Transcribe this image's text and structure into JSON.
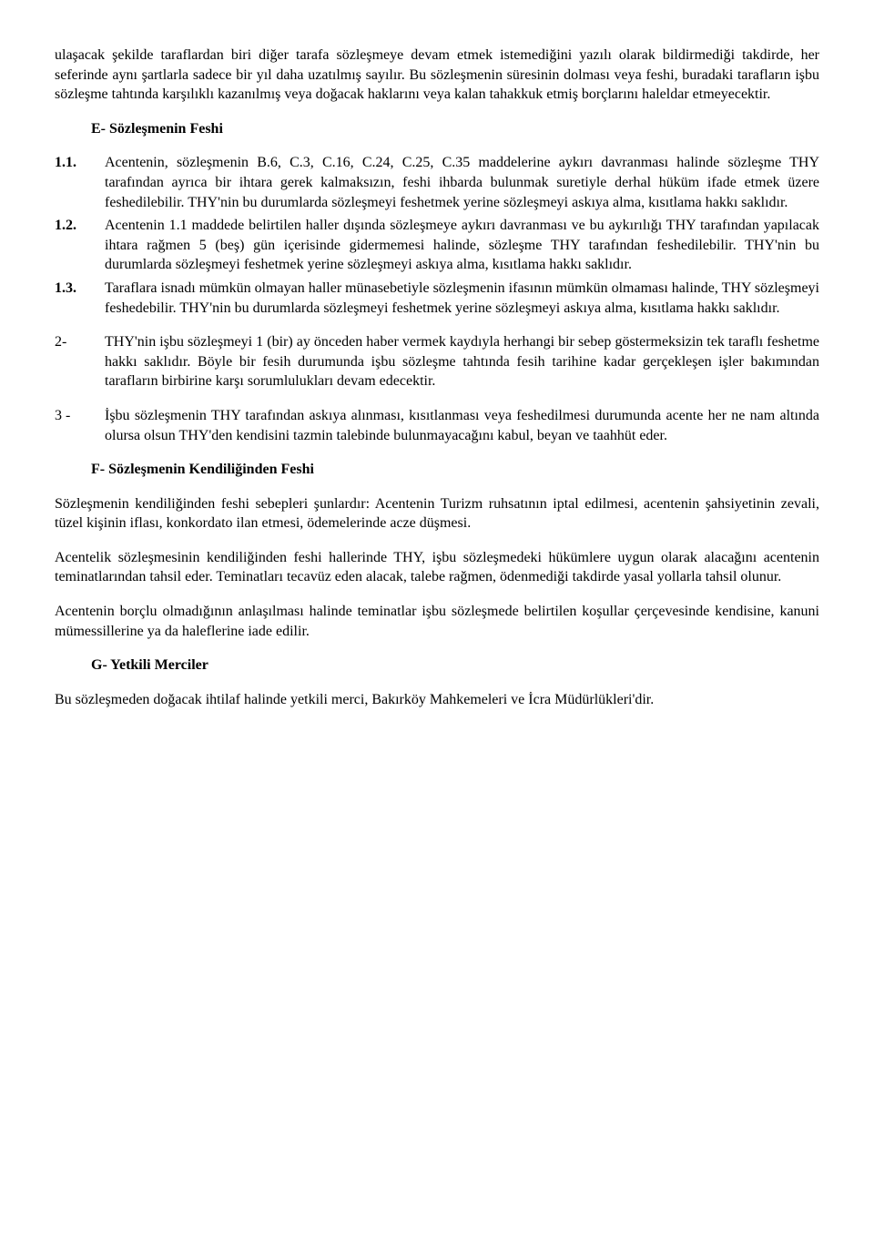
{
  "intro1": "ulaşacak şekilde taraflardan biri diğer tarafa sözleşmeye devam etmek istemediğini yazılı olarak bildirmediği takdirde, her seferinde aynı şartlarla sadece bir yıl daha uzatılmış sayılır. Bu sözleşmenin süresinin dolması veya feshi, buradaki tarafların işbu sözleşme tahtında karşılıklı kazanılmış veya doğacak haklarını veya kalan tahakkuk etmiş borçlarını haleldar etmeyecektir.",
  "sectionE": {
    "heading": "E- Sözleşmenin Feshi",
    "item1_1": {
      "label": "1.1.",
      "text": "Acentenin, sözleşmenin B.6, C.3, C.16, C.24, C.25, C.35 maddelerine aykırı davranması halinde sözleşme THY tarafından ayrıca bir ihtara gerek kalmaksızın, feshi ihbarda bulunmak suretiyle derhal hüküm ifade etmek üzere feshedilebilir. THY'nin bu durumlarda sözleşmeyi feshetmek yerine sözleşmeyi askıya alma, kısıtlama hakkı saklıdır."
    },
    "item1_2": {
      "label": "1.2.",
      "text": "Acentenin 1.1 maddede belirtilen haller dışında sözleşmeye aykırı davranması ve bu aykırılığı THY tarafından yapılacak ihtara rağmen 5 (beş) gün içerisinde gidermemesi halinde, sözleşme THY tarafından feshedilebilir. THY'nin bu durumlarda sözleşmeyi feshetmek yerine sözleşmeyi askıya alma, kısıtlama hakkı saklıdır."
    },
    "item1_3": {
      "label": "1.3.",
      "text": "Taraflara isnadı mümkün olmayan haller münasebetiyle sözleşmenin ifasının mümkün olmaması halinde, THY sözleşmeyi feshedebilir. THY'nin bu durumlarda sözleşmeyi feshetmek yerine sözleşmeyi askıya alma, kısıtlama hakkı saklıdır."
    },
    "item2": {
      "label": "2-",
      "text": "THY'nin işbu sözleşmeyi 1 (bir) ay önceden haber vermek kaydıyla herhangi bir sebep göstermeksizin tek taraflı feshetme hakkı saklıdır. Böyle bir fesih durumunda işbu sözleşme tahtında fesih tarihine kadar gerçekleşen işler bakımından tarafların birbirine karşı sorumlulukları devam edecektir."
    },
    "item3": {
      "label": "3 -",
      "text": "İşbu sözleşmenin THY tarafından askıya alınması, kısıtlanması veya feshedilmesi durumunda acente her ne nam altında olursa olsun THY'den kendisini tazmin talebinde bulunmayacağını kabul, beyan ve taahhüt eder."
    }
  },
  "sectionF": {
    "heading": "F- Sözleşmenin Kendiliğinden Feshi",
    "para1": "Sözleşmenin kendiliğinden feshi sebepleri şunlardır: Acentenin Turizm ruhsatının iptal edilmesi, acentenin şahsiyetinin zevali, tüzel kişinin iflası, konkordato ilan etmesi, ödemelerinde acze düşmesi.",
    "para2": "Acentelik sözleşmesinin kendiliğinden feshi hallerinde THY, işbu sözleşmedeki hükümlere uygun olarak alacağını acentenin teminatlarından tahsil eder. Teminatları tecavüz eden alacak, talebe rağmen, ödenmediği takdirde yasal yollarla tahsil olunur.",
    "para3": "Acentenin borçlu olmadığının anlaşılması halinde teminatlar işbu sözleşmede belirtilen koşullar çerçevesinde kendisine, kanuni mümessillerine ya da haleflerine iade edilir."
  },
  "sectionG": {
    "heading": "G- Yetkili Merciler",
    "para1": "Bu sözleşmeden doğacak ihtilaf halinde yetkili merci, Bakırköy Mahkemeleri ve İcra Müdürlükleri'dir."
  }
}
